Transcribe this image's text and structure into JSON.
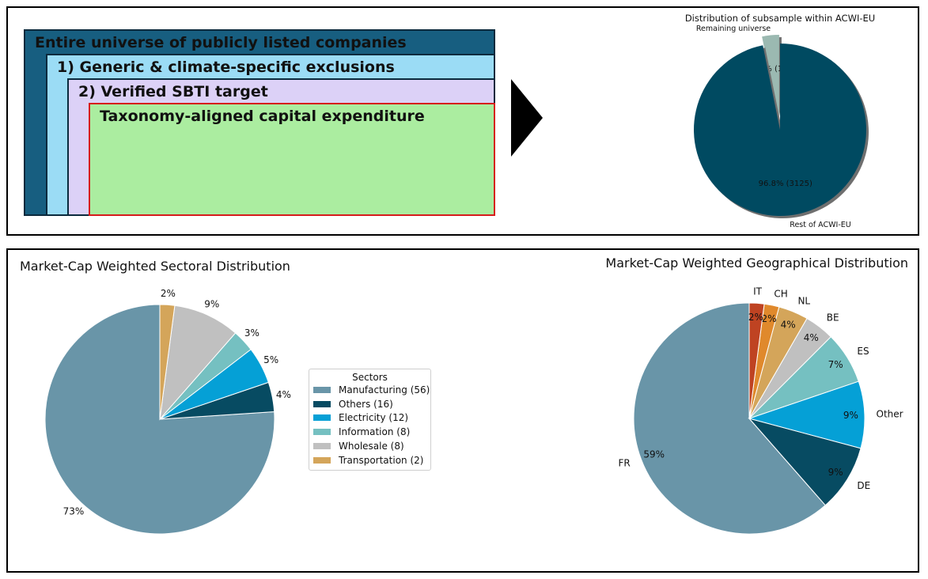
{
  "funnel": {
    "level1": "Entire universe of publicly listed companies",
    "level2": "1) Generic & climate-specific exclusions",
    "level3": "2) Verified SBTI target",
    "level4": "Taxonomy-aligned capital expenditure"
  },
  "colors": {
    "manufacturing": "#6995a8",
    "others": "#074b62",
    "electricity": "#05a0d6",
    "information": "#75c0c1",
    "wholesale": "#c0c0c0",
    "transportation": "#d4a55a",
    "ch": "#e0892c",
    "it": "#bf4322",
    "remaining": "#9bb9b1",
    "rest": "#004a61"
  },
  "chart_data": [
    {
      "type": "pie",
      "title": "Distribution of subsample within ACWI-EU",
      "slices": [
        {
          "name": "Remaining universe",
          "value": 3.2,
          "label": "3.2% (102)",
          "exploded": true
        },
        {
          "name": "Rest of ACWI-EU",
          "value": 96.8,
          "label": "96.8% (3125)"
        }
      ]
    },
    {
      "type": "pie",
      "title": "Market-Cap Weighted Sectoral Distribution",
      "legend_title": "Sectors",
      "legend_placement": "right",
      "slices": [
        {
          "name": "Manufacturing (56)",
          "value": 73,
          "label": "73%"
        },
        {
          "name": "Others (16)",
          "value": 4,
          "label": "4%"
        },
        {
          "name": "Electricity (12)",
          "value": 5,
          "label": "5%"
        },
        {
          "name": "Information (8)",
          "value": 3,
          "label": "3%"
        },
        {
          "name": "Wholesale (8)",
          "value": 9,
          "label": "9%"
        },
        {
          "name": "Transportation (2)",
          "value": 2,
          "label": "2%"
        }
      ]
    },
    {
      "type": "pie",
      "title": "Market-Cap Weighted Geographical Distribution",
      "slices": [
        {
          "name": "FR",
          "value": 59,
          "label": "59%"
        },
        {
          "name": "DE",
          "value": 9,
          "label": "9%"
        },
        {
          "name": "Other",
          "value": 9,
          "label": "9%"
        },
        {
          "name": "ES",
          "value": 7,
          "label": "7%"
        },
        {
          "name": "BE",
          "value": 4,
          "label": "4%"
        },
        {
          "name": "NL",
          "value": 4,
          "label": "4%"
        },
        {
          "name": "CH",
          "value": 2,
          "label": "2%"
        },
        {
          "name": "IT",
          "value": 2,
          "label": "2%"
        }
      ]
    }
  ]
}
